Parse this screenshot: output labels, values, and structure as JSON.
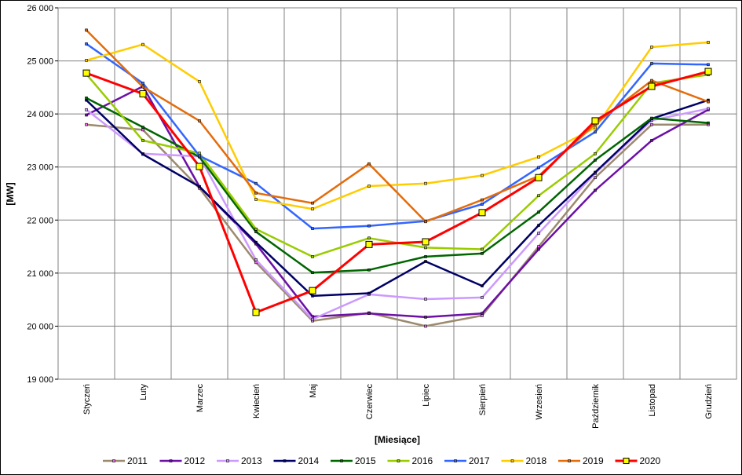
{
  "chart_data": {
    "type": "line",
    "title": "",
    "xlabel": "[Miesiące]",
    "ylabel": "[MW]",
    "ylim": [
      19000,
      26000
    ],
    "ystep": 1000,
    "yticks": [
      "19 000",
      "20 000",
      "21 000",
      "22 000",
      "23 000",
      "24 000",
      "25 000",
      "26 000"
    ],
    "grid": "on",
    "legend_position": "bottom",
    "categories": [
      "Styczeń",
      "Luty",
      "Marzec",
      "Kwiecień",
      "Maj",
      "Czerwiec",
      "Lipiec",
      "Sierpień",
      "Wrzesień",
      "Październik",
      "Listopad",
      "Grudzień"
    ],
    "series": [
      {
        "name": "2011",
        "color": "#9c8a6e",
        "marker": "#ff66ff",
        "values": [
          23800,
          23700,
          22600,
          21200,
          20100,
          20250,
          20000,
          20200,
          21500,
          22800,
          23800,
          23800
        ]
      },
      {
        "name": "2012",
        "color": "#6c10a6",
        "marker": "#6c10a6",
        "values": [
          23980,
          24520,
          22630,
          21550,
          20180,
          20240,
          20170,
          20240,
          21450,
          22560,
          23500,
          24080
        ]
      },
      {
        "name": "2013",
        "color": "#cc99ff",
        "marker": "#cc99ff",
        "values": [
          24080,
          23250,
          23200,
          21250,
          20130,
          20600,
          20510,
          20540,
          21750,
          22880,
          23880,
          24100
        ]
      },
      {
        "name": "2014",
        "color": "#000066",
        "marker": "#000066",
        "values": [
          24260,
          23240,
          22630,
          21580,
          20570,
          20620,
          21220,
          20760,
          21900,
          22900,
          23910,
          24260
        ]
      },
      {
        "name": "2015",
        "color": "#006600",
        "marker": "#006600",
        "values": [
          24300,
          23750,
          23190,
          21780,
          21010,
          21060,
          21310,
          21370,
          22150,
          23130,
          23920,
          23830
        ]
      },
      {
        "name": "2016",
        "color": "#99cc00",
        "marker": "#99cc00",
        "values": [
          24750,
          23500,
          23260,
          21830,
          21310,
          21660,
          21480,
          21450,
          22460,
          23250,
          24580,
          24740
        ]
      },
      {
        "name": "2017",
        "color": "#3366ff",
        "marker": "#3366ff",
        "values": [
          25320,
          24580,
          23210,
          22690,
          21840,
          21890,
          21980,
          22300,
          22990,
          23660,
          24950,
          24930
        ]
      },
      {
        "name": "2018",
        "color": "#ffcc00",
        "marker": "#ffcc00",
        "values": [
          25010,
          25310,
          24610,
          22390,
          22210,
          22640,
          22690,
          22840,
          23190,
          23740,
          25260,
          25350
        ]
      },
      {
        "name": "2019",
        "color": "#e46c0a",
        "marker": "#e46c0a",
        "values": [
          25580,
          24510,
          23870,
          22510,
          22320,
          23060,
          21970,
          22380,
          22830,
          23810,
          24630,
          24230
        ]
      },
      {
        "name": "2020",
        "color": "#ff0000",
        "marker": "#ffff00",
        "values": [
          24770,
          24380,
          23010,
          20260,
          20670,
          21540,
          21590,
          22140,
          22800,
          23870,
          24520,
          24800
        ]
      }
    ]
  }
}
